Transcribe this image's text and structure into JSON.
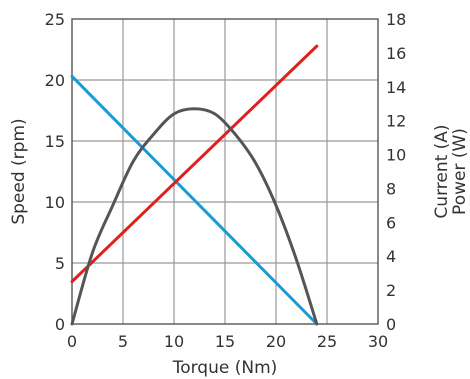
{
  "chart_data": {
    "type": "line",
    "xlabel": "Torque (Nm)",
    "ylabel_left": "Speed (rpm)",
    "ylabel_right": [
      "Current (A)",
      "Power (W)"
    ],
    "xlim": [
      0,
      30
    ],
    "ylim_left": [
      0,
      25
    ],
    "ylim_right": [
      0,
      18
    ],
    "x_ticks": [
      0,
      5,
      10,
      15,
      20,
      25,
      30
    ],
    "y_left_ticks": [
      0,
      5,
      10,
      15,
      20,
      25
    ],
    "y_right_ticks": [
      0,
      2,
      4,
      6,
      8,
      10,
      12,
      14,
      16,
      18
    ],
    "grid": true,
    "series": [
      {
        "axis": "left",
        "color": "#1a9bd7",
        "x": [
          0,
          24
        ],
        "y": [
          20.3,
          0
        ]
      },
      {
        "axis": "right",
        "color": "#e02020",
        "x": [
          0,
          24
        ],
        "y": [
          2.5,
          16.4
        ]
      },
      {
        "axis": "right",
        "color": "#555555",
        "x": [
          0,
          2,
          4,
          6,
          8,
          10,
          12,
          14,
          16,
          18,
          20,
          22,
          24
        ],
        "y": [
          0,
          4.2,
          7.0,
          9.6,
          11.2,
          12.4,
          12.7,
          12.4,
          11.2,
          9.5,
          7.0,
          3.8,
          0
        ]
      }
    ]
  }
}
